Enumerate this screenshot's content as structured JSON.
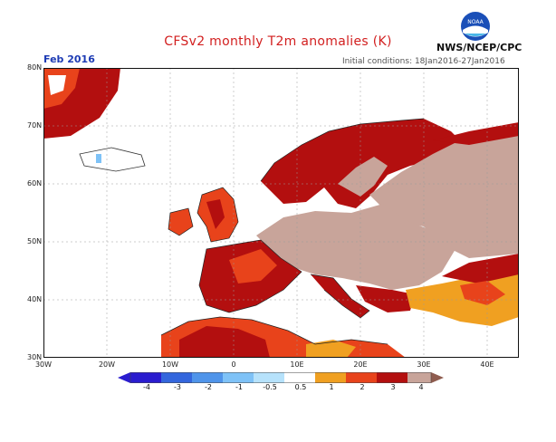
{
  "title": "CFSv2 monthly T2m anomalies (K)",
  "period": "Feb 2016",
  "initial_conditions": "Initial conditions: 18Jan2016-27Jan2016",
  "agency": "NWS/NCEP/CPC",
  "logo_text": "NOAA",
  "lat_labels": [
    "80N",
    "70N",
    "60N",
    "50N",
    "40N",
    "30N"
  ],
  "lon_labels": [
    "30W",
    "20W",
    "10W",
    "0",
    "10E",
    "20E",
    "30E",
    "40E"
  ],
  "colorbar": {
    "ticks": [
      "-4",
      "-3",
      "-2",
      "-1",
      "-0.5",
      "0.5",
      "1",
      "2",
      "3",
      "4"
    ],
    "colors": [
      "#2a1ccf",
      "#3366dd",
      "#4f94ea",
      "#7ec2f7",
      "#b6e2fb",
      "#ffffff",
      "#f0a021",
      "#e8431b",
      "#b30f0f",
      "#c8a49a"
    ]
  }
}
